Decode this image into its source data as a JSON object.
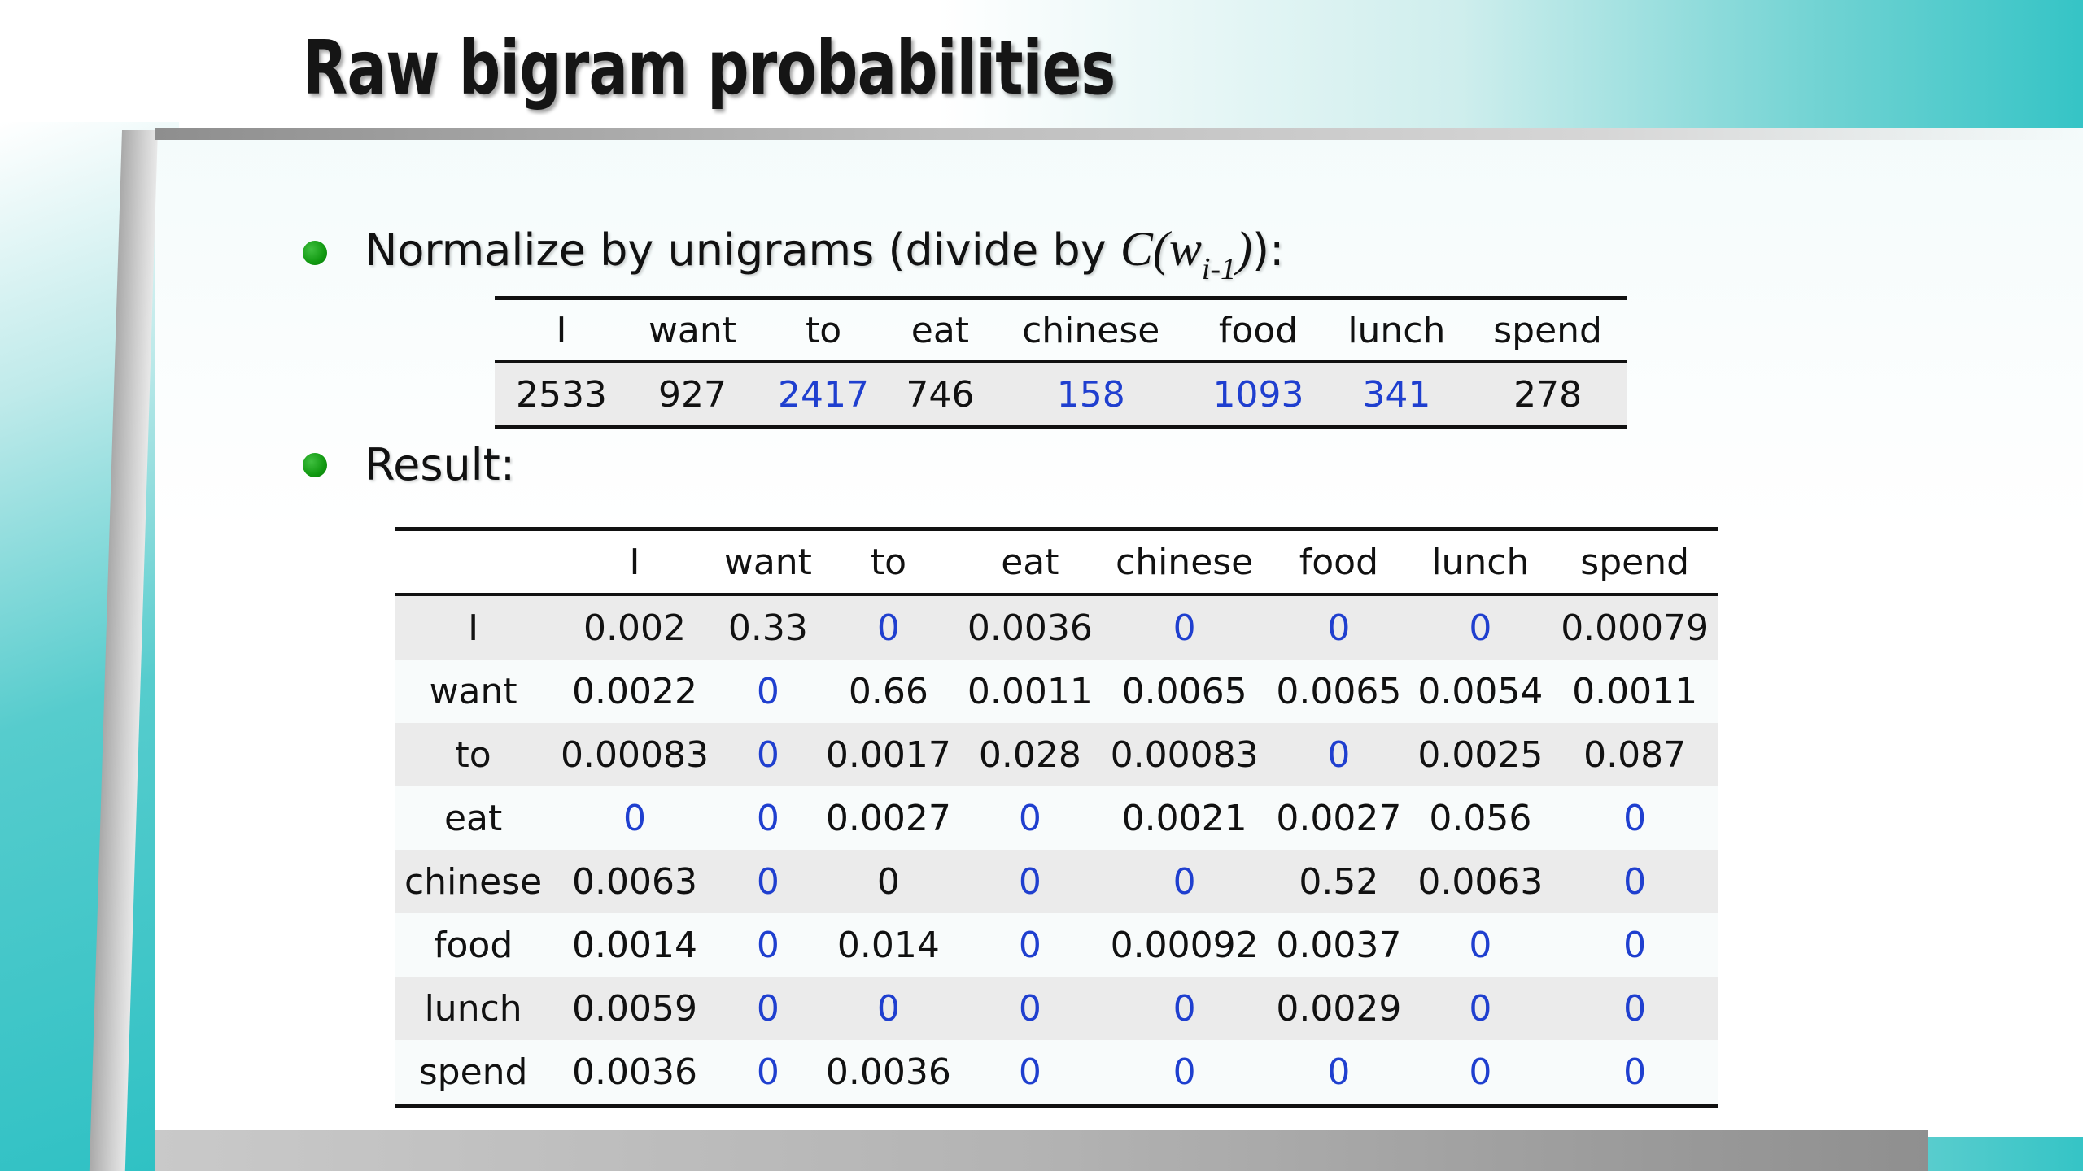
{
  "slide": {
    "title": "Raw bigram probabilities",
    "bullet1": {
      "text": "Normalize by unigrams (divide by ",
      "math_func": "C(",
      "math_var": "w",
      "math_sub": "i-1",
      "math_close": ")",
      "suffix": "):"
    },
    "bullet2": {
      "text": "Result:"
    },
    "colors": {
      "title_text": "#151515",
      "bullet_green": "#119911",
      "highlight_blue": "#1f3fcf",
      "teal_accent": "#35c4c6"
    }
  },
  "unigram_table": {
    "headers": [
      "I",
      "want",
      "to",
      "eat",
      "chinese",
      "food",
      "lunch",
      "spend"
    ],
    "values": [
      {
        "v": "2533",
        "blue": false
      },
      {
        "v": "927",
        "blue": false
      },
      {
        "v": "2417",
        "blue": true
      },
      {
        "v": "746",
        "blue": false
      },
      {
        "v": "158",
        "blue": true
      },
      {
        "v": "1093",
        "blue": true
      },
      {
        "v": "341",
        "blue": true
      },
      {
        "v": "278",
        "blue": false
      }
    ]
  },
  "result_table": {
    "corner": "",
    "headers": [
      "I",
      "want",
      "to",
      "eat",
      "chinese",
      "food",
      "lunch",
      "spend"
    ],
    "rows": [
      {
        "label": "I",
        "cells": [
          {
            "v": "0.002",
            "blue": false
          },
          {
            "v": "0.33",
            "blue": false
          },
          {
            "v": "0",
            "blue": true
          },
          {
            "v": "0.0036",
            "blue": false
          },
          {
            "v": "0",
            "blue": true
          },
          {
            "v": "0",
            "blue": true
          },
          {
            "v": "0",
            "blue": true
          },
          {
            "v": "0.00079",
            "blue": false
          }
        ]
      },
      {
        "label": "want",
        "cells": [
          {
            "v": "0.0022",
            "blue": false
          },
          {
            "v": "0",
            "blue": true
          },
          {
            "v": "0.66",
            "blue": false
          },
          {
            "v": "0.0011",
            "blue": false
          },
          {
            "v": "0.0065",
            "blue": false
          },
          {
            "v": "0.0065",
            "blue": false
          },
          {
            "v": "0.0054",
            "blue": false
          },
          {
            "v": "0.0011",
            "blue": false
          }
        ]
      },
      {
        "label": "to",
        "cells": [
          {
            "v": "0.00083",
            "blue": false
          },
          {
            "v": "0",
            "blue": true
          },
          {
            "v": "0.0017",
            "blue": false
          },
          {
            "v": "0.028",
            "blue": false
          },
          {
            "v": "0.00083",
            "blue": false
          },
          {
            "v": "0",
            "blue": true
          },
          {
            "v": "0.0025",
            "blue": false
          },
          {
            "v": "0.087",
            "blue": false
          }
        ]
      },
      {
        "label": "eat",
        "cells": [
          {
            "v": "0",
            "blue": true
          },
          {
            "v": "0",
            "blue": true
          },
          {
            "v": "0.0027",
            "blue": false
          },
          {
            "v": "0",
            "blue": true
          },
          {
            "v": "0.0021",
            "blue": false
          },
          {
            "v": "0.0027",
            "blue": false
          },
          {
            "v": "0.056",
            "blue": false
          },
          {
            "v": "0",
            "blue": true
          }
        ]
      },
      {
        "label": "chinese",
        "cells": [
          {
            "v": "0.0063",
            "blue": false
          },
          {
            "v": "0",
            "blue": true
          },
          {
            "v": "0",
            "blue": false
          },
          {
            "v": "0",
            "blue": true
          },
          {
            "v": "0",
            "blue": true
          },
          {
            "v": "0.52",
            "blue": false
          },
          {
            "v": "0.0063",
            "blue": false
          },
          {
            "v": "0",
            "blue": true
          }
        ]
      },
      {
        "label": "food",
        "cells": [
          {
            "v": "0.0014",
            "blue": false
          },
          {
            "v": "0",
            "blue": true
          },
          {
            "v": "0.014",
            "blue": false
          },
          {
            "v": "0",
            "blue": true
          },
          {
            "v": "0.00092",
            "blue": false
          },
          {
            "v": "0.0037",
            "blue": false
          },
          {
            "v": "0",
            "blue": true
          },
          {
            "v": "0",
            "blue": true
          }
        ]
      },
      {
        "label": "lunch",
        "cells": [
          {
            "v": "0.0059",
            "blue": false
          },
          {
            "v": "0",
            "blue": true
          },
          {
            "v": "0",
            "blue": true
          },
          {
            "v": "0",
            "blue": true
          },
          {
            "v": "0",
            "blue": true
          },
          {
            "v": "0.0029",
            "blue": false
          },
          {
            "v": "0",
            "blue": true
          },
          {
            "v": "0",
            "blue": true
          }
        ]
      },
      {
        "label": "spend",
        "cells": [
          {
            "v": "0.0036",
            "blue": false
          },
          {
            "v": "0",
            "blue": true
          },
          {
            "v": "0.0036",
            "blue": false
          },
          {
            "v": "0",
            "blue": true
          },
          {
            "v": "0",
            "blue": true
          },
          {
            "v": "0",
            "blue": true
          },
          {
            "v": "0",
            "blue": true
          },
          {
            "v": "0",
            "blue": true
          }
        ]
      }
    ]
  }
}
